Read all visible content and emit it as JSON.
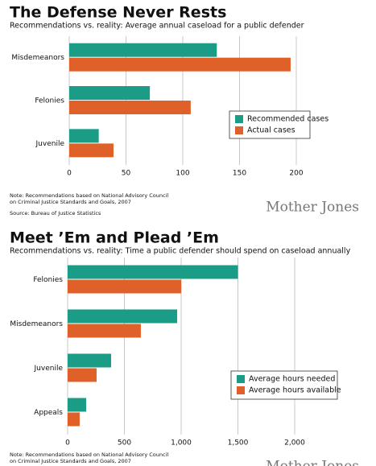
{
  "chart_data": [
    {
      "type": "bar",
      "orientation": "horizontal",
      "title": "The Defense Never Rests",
      "subtitle": "Recommendations vs. reality: Average annual caseload for a public defender",
      "categories": [
        "Misdemeanors",
        "Felonies",
        "Juvenile"
      ],
      "series": [
        {
          "name": "Recommended cases",
          "color": "#1a9c86",
          "values": [
            130,
            71,
            26
          ]
        },
        {
          "name": "Actual cases",
          "color": "#e0602a",
          "values": [
            195,
            107,
            39
          ]
        }
      ],
      "xlim": [
        0,
        200
      ],
      "xticks": [
        0,
        50,
        100,
        150,
        200
      ],
      "grid": true,
      "legend": "lower right",
      "note_lines": [
        "Note: Recommendations based on National Advisory Council",
        "on Criminal Justice Standards and Goals, 2007"
      ],
      "source": "Source: Bureau of Justice Statistics",
      "credit": "Mother Jones"
    },
    {
      "type": "bar",
      "orientation": "horizontal",
      "title": "Meet ’Em and Plead ’Em",
      "subtitle": "Recommendations vs. reality: Time a public defender should spend on caseload annually",
      "categories": [
        "Felonies",
        "Misdemeanors",
        "Juvenile",
        "Appeals"
      ],
      "series": [
        {
          "name": "Average hours needed",
          "color": "#1a9c86",
          "values": [
            1500,
            965,
            383,
            163
          ]
        },
        {
          "name": "Average hours available",
          "color": "#e0602a",
          "values": [
            1000,
            645,
            255,
            106
          ]
        }
      ],
      "xlim": [
        0,
        2000
      ],
      "xticks": [
        0,
        500,
        {
          "value": 1000,
          "label": "1,000"
        },
        {
          "value": 1500,
          "label": "1,500"
        },
        {
          "value": 2000,
          "label": "2,000"
        }
      ],
      "grid": true,
      "legend": "lower right",
      "note_lines": [
        "Note: Recommendations based on National Advisory Council",
        "on Criminal Justice Standards and Goals, 2007"
      ],
      "credit": "Mother Jones"
    }
  ]
}
